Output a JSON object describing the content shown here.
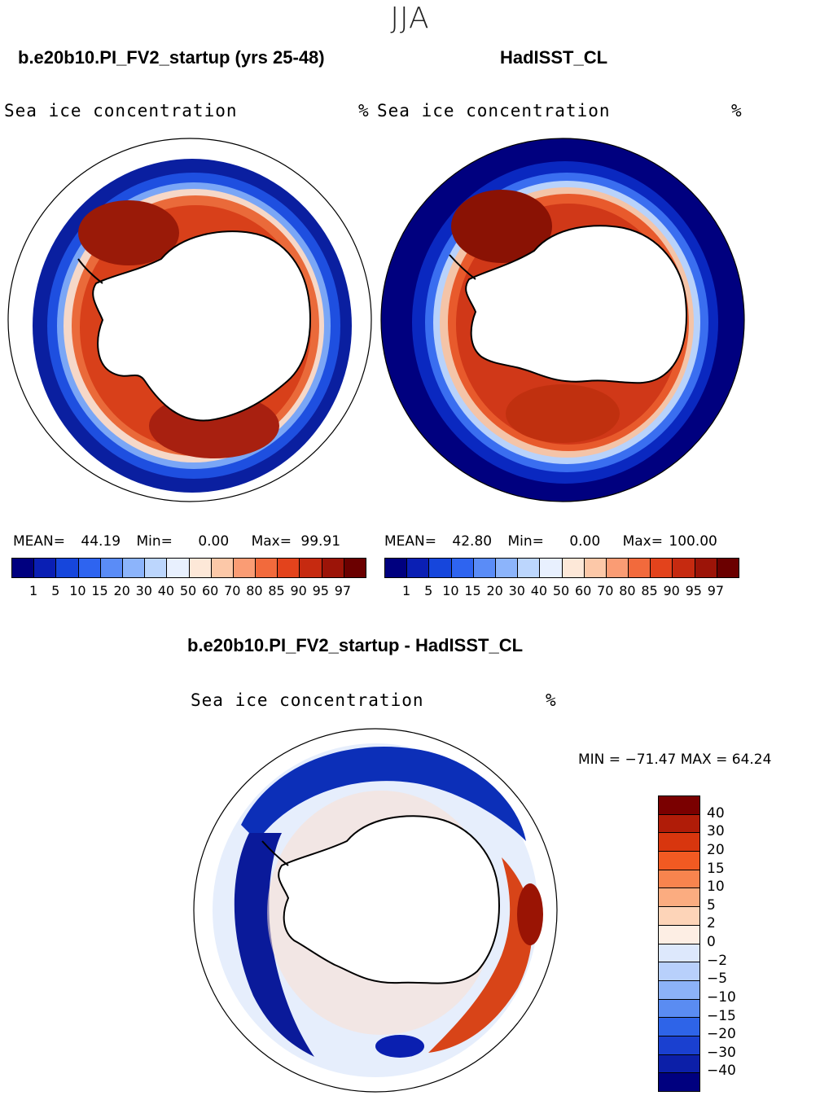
{
  "season": "JJA",
  "panels": {
    "model": {
      "title": "b.e20b10.PI_FV2_startup (yrs 25-48)",
      "variable": "Sea ice concentration",
      "unit": "%",
      "mean_label": "MEAN=",
      "mean": "44.19",
      "min_label": "Min=",
      "min": "0.00",
      "max_label": "Max=",
      "max": "99.91"
    },
    "obs": {
      "title": "HadISST_CL",
      "variable": "Sea ice concentration",
      "unit": "%",
      "mean_label": "MEAN=",
      "mean": "42.80",
      "min_label": "Min=",
      "min": "0.00",
      "max_label": "Max=",
      "max": "100.00"
    },
    "diff": {
      "title": "b.e20b10.PI_FV2_startup - HadISST_CL",
      "variable": "Sea ice concentration",
      "unit": "%",
      "minmax": "MIN = −71.47 MAX =  64.24"
    }
  },
  "colorbar_levels": [
    "1",
    "5",
    "10",
    "15",
    "20",
    "30",
    "40",
    "50",
    "60",
    "70",
    "80",
    "85",
    "90",
    "95",
    "97"
  ],
  "colorbar_colors": [
    "#00007f",
    "#0a1fb4",
    "#1646dc",
    "#2e64f0",
    "#5a8cf7",
    "#8cb4fb",
    "#bcd6fd",
    "#e8f0fe",
    "#fde8d8",
    "#fcc8a8",
    "#fa9c74",
    "#f26a3c",
    "#e3431c",
    "#c62a10",
    "#9c1408",
    "#6b0000"
  ],
  "diff_levels": [
    "40",
    "30",
    "20",
    "15",
    "10",
    "5",
    "2",
    "0",
    "−2",
    "−5",
    "−10",
    "−15",
    "−20",
    "−30",
    "−40"
  ],
  "diff_colors": [
    "#7a0000",
    "#b01c08",
    "#d8360e",
    "#f25a22",
    "#f8844e",
    "#fbac80",
    "#fdd4b8",
    "#fdeee4",
    "#dde8fc",
    "#b8d0fb",
    "#8cb2f8",
    "#5a8cf2",
    "#2e64e8",
    "#1a40d0",
    "#0c1fa8",
    "#00007f"
  ]
}
